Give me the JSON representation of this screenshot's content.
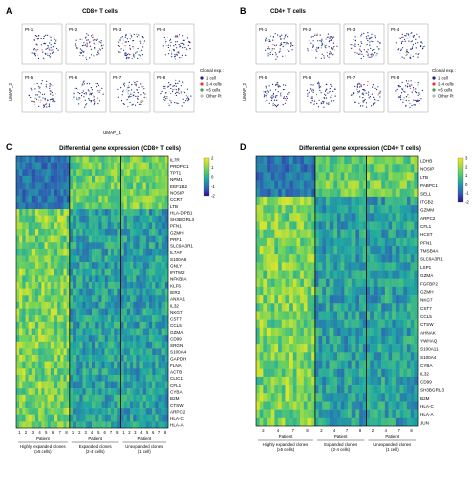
{
  "panel_a": {
    "letter": "A",
    "title": "CD8+ T cells",
    "panels": [
      "Pt-1",
      "Pt-2",
      "Pt-3",
      "Pt-4",
      "Pt-5",
      "Pt-6",
      "Pt-7",
      "Pt-8"
    ],
    "y_label": "UMAP_2",
    "x_label": "UMAP_1",
    "legend_title": "Clonal exp.:",
    "legend": [
      {
        "label": "1 cell",
        "color": "#1a237e"
      },
      {
        "label": "2-4 cells",
        "color": "#e53935"
      },
      {
        "label": ">5 cells",
        "color": "#43a047"
      },
      {
        "label": "Other Pt",
        "color": "#b0bec5"
      }
    ]
  },
  "panel_b": {
    "letter": "B",
    "title": "CD4+ T cells",
    "panels": [
      "Pt-1",
      "Pt-2",
      "Pt-3",
      "Pt-4",
      "Pt-5",
      "Pt-6",
      "Pt-7",
      "Pt-8"
    ],
    "y_label": "UMAP_2",
    "legend_title": "Clonal exp.:",
    "legend": [
      {
        "label": "1 cell",
        "color": "#1a237e"
      },
      {
        "label": "2-4 cells",
        "color": "#e53935"
      },
      {
        "label": ">5 cells",
        "color": "#43a047"
      },
      {
        "label": "Other Pt",
        "color": "#b0bec5"
      }
    ]
  },
  "panel_c": {
    "letter": "C",
    "title": "Differential gene expression (CD8+ T cells)",
    "genes": [
      "IL7R",
      "PRDPC1",
      "TPT1",
      "NPM1",
      "EEF1B2",
      "NOSIP",
      "CCR7",
      "LTB",
      "HLA-DPB1",
      "SH3BGRL3",
      "PFN1",
      "GZMH",
      "PRF1",
      "SLC9A3R1",
      "IL7AF",
      "S100A6",
      "GNLY",
      "IFITM2",
      "NFKBIA",
      "KLF6",
      "IER2",
      "ANXA1",
      "IL32",
      "NKG7",
      "CST7",
      "CCL5",
      "GZMA",
      "CD99",
      "SRGN",
      "S100A4",
      "GAPDH",
      "FLNA",
      "ACTB",
      "CLIC1",
      "CFL1",
      "CYBA",
      "B2M",
      "CTSW",
      "ARPC2",
      "HLA-C",
      "HLA-A"
    ],
    "group_labels": [
      "Highly expanded clones (≥5 cells)",
      "Expanded clones (2-4 cells)",
      "Unexpanded clones (1 cell)"
    ],
    "patient_word": "Patient",
    "x_ticks": [
      "1",
      "2",
      "3",
      "4",
      "5",
      "6",
      "7",
      "8"
    ],
    "colorbar_ticks": [
      "2",
      "1",
      "0",
      "-1",
      "-2"
    ]
  },
  "panel_d": {
    "letter": "D",
    "title": "Differential gene expression (CD4+ T cells)",
    "genes": [
      "LDHB",
      "NOSIP",
      "LTB",
      "PABPC1",
      "SELL",
      "ITGB2",
      "GZMM",
      "ARPC2",
      "CFL1",
      "HCST",
      "PFN1",
      "TMSB4A",
      "SLC9A3R1",
      "LSP1",
      "GZMA",
      "FGFBP2",
      "GZMH",
      "NKG7",
      "CST7",
      "CCL5",
      "CTSW",
      "AHNAK",
      "YWHAQ",
      "S100A11",
      "S100A4",
      "CYBA",
      "IL32",
      "CD99",
      "SH3BGRL3",
      "B2M",
      "HLA-C",
      "HLA-A",
      "JUN"
    ],
    "group_labels": [
      "Highly expanded clones (≥5 cells)",
      "Expanded clones (2-4 cells)",
      "Unexpanded clones (1 cell)"
    ],
    "patient_word": "Patient",
    "x_ticks": [
      "2",
      "4",
      "7",
      "8"
    ],
    "colorbar_ticks": [
      "3",
      "2",
      "1",
      "0",
      "-1",
      "-2"
    ]
  },
  "colors": {
    "heat_low": "#2c0f8c",
    "heat_mid": "#1fa9a2",
    "heat_high": "#f7e81f",
    "one_cell": "#1a237e",
    "two_four": "#e53935",
    "five_plus": "#43a047"
  }
}
